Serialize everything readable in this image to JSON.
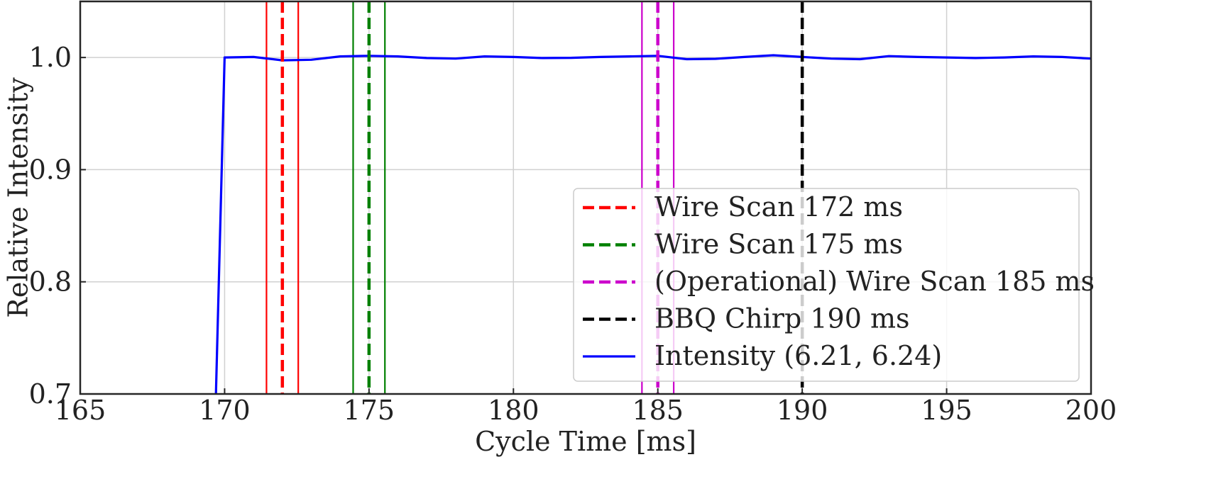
{
  "chart_data": {
    "type": "line",
    "title": "",
    "xlabel": "Cycle Time [ms]",
    "ylabel": "Relative Intensity",
    "xlim": [
      165,
      200
    ],
    "ylim": [
      0.7,
      1.05
    ],
    "grid": true,
    "xticks": [
      165,
      170,
      175,
      180,
      185,
      190,
      195,
      200
    ],
    "yticks": [
      0.7,
      0.8,
      0.9,
      1.0
    ],
    "xtick_labels": [
      "165",
      "170",
      "175",
      "180",
      "185",
      "190",
      "195",
      "200"
    ],
    "ytick_labels": [
      "0.7",
      "0.8",
      "0.9",
      "1.0"
    ],
    "legend_position": "lower-right",
    "vertical_markers": [
      {
        "name": "Wire Scan 172 ms",
        "x": 172,
        "band": [
          171.45,
          172.55
        ],
        "color": "#ff0000"
      },
      {
        "name": "Wire Scan 175 ms",
        "x": 175,
        "band": [
          174.45,
          175.55
        ],
        "color": "#008000"
      },
      {
        "name": "(Operational) Wire Scan 185 ms",
        "x": 185,
        "band": [
          184.45,
          185.55
        ],
        "color": "#cc00cc"
      },
      {
        "name": "BBQ Chirp 190 ms",
        "x": 190,
        "band": null,
        "color": "#000000"
      }
    ],
    "series": [
      {
        "name": "Intensity (6.21, 6.24)",
        "color": "#0000ff",
        "x": [
          169.7,
          170,
          171,
          172,
          173,
          174,
          175,
          176,
          177,
          178,
          179,
          180,
          181,
          182,
          183,
          184,
          185,
          186,
          187,
          188,
          189,
          190,
          191,
          192,
          193,
          194,
          195,
          196,
          197,
          198,
          199,
          200
        ],
        "y": [
          0.7,
          1.0,
          1.0005,
          0.9975,
          0.998,
          1.001,
          1.0015,
          1.001,
          0.9995,
          0.999,
          1.001,
          1.0005,
          0.9995,
          0.9997,
          1.0005,
          1.001,
          1.0015,
          0.9985,
          0.9988,
          1.0005,
          1.002,
          1.0005,
          0.999,
          0.9985,
          1.0012,
          1.0005,
          1.0,
          0.9995,
          1.0,
          1.001,
          1.0005,
          0.999
        ]
      }
    ],
    "legend_order": [
      "Wire Scan 172 ms",
      "Wire Scan 175 ms",
      "(Operational) Wire Scan 185 ms",
      "BBQ Chirp 190 ms",
      "Intensity (6.21, 6.24)"
    ]
  }
}
